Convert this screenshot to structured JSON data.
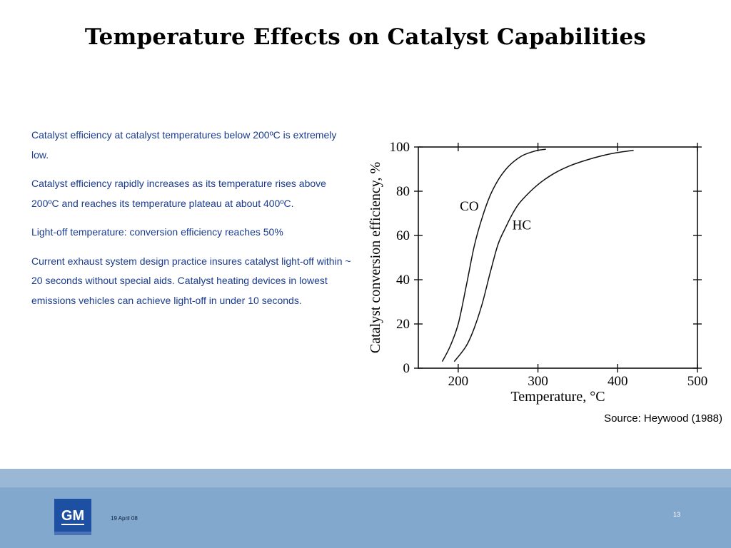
{
  "slide": {
    "title": "Temperature Effects on Catalyst Capabilities",
    "bullets": [
      "Catalyst efficiency at catalyst temperatures below 200ºC is extremely low.",
      "Catalyst efficiency rapidly increases  as its temperature rises above 200ºC and reaches its temperature plateau at about 400ºC.",
      "Light-off temperature: conversion efficiency reaches 50%",
      "Current exhaust system design practice insures catalyst light-off within ~ 20 seconds without special aids.  Catalyst heating devices in lowest emissions vehicles can achieve light-off in under 10 seconds."
    ],
    "source": "Source: Heywood (1988)"
  },
  "footer": {
    "logo_text": "GM",
    "date": "19 April 08",
    "page_number": "13",
    "colors": {
      "band": "#9bb7d6",
      "bar": "#82a8cd",
      "logo": "#1d4fa3"
    }
  },
  "chart_data": {
    "type": "line",
    "xlabel": "Temperature,  °C",
    "ylabel": "Catalyst conversion efficiency,  %",
    "xlim": [
      150,
      500
    ],
    "ylim": [
      0,
      100
    ],
    "x_ticks": [
      "200",
      "300",
      "400",
      "500"
    ],
    "y_ticks": [
      "0",
      "20",
      "40",
      "60",
      "80",
      "100"
    ],
    "series": [
      {
        "name": "CO",
        "x": [
          180,
          190,
          200,
          210,
          220,
          230,
          240,
          250,
          260,
          270,
          280,
          290,
          300,
          310
        ],
        "y": [
          3,
          10,
          20,
          37,
          55,
          68,
          78,
          85,
          90,
          93.5,
          96,
          97.5,
          98.5,
          99
        ]
      },
      {
        "name": "HC",
        "x": [
          195,
          210,
          220,
          230,
          240,
          250,
          260,
          270,
          280,
          300,
          320,
          340,
          360,
          380,
          400,
          420
        ],
        "y": [
          3,
          10,
          18,
          29,
          43,
          56,
          64,
          71,
          76,
          83,
          88,
          91.5,
          94,
          96,
          97.5,
          98.5
        ]
      }
    ],
    "grid": false,
    "legend": "inline labels"
  }
}
